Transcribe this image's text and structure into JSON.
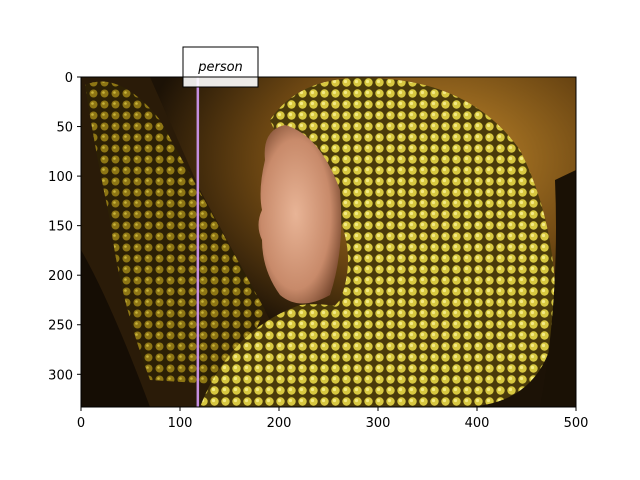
{
  "image": {
    "description_colors": {
      "background_dark": "#1f1608",
      "sequin_bright": "#e2d449",
      "sequin_mid": "#a68f1c",
      "sequin_dark": "#3b2c08",
      "skin": "#d9a384",
      "backdrop_warm": "#b07a24"
    }
  },
  "axes": {
    "x_ticks": [
      "0",
      "100",
      "200",
      "300",
      "400",
      "500"
    ],
    "x_tick_values": [
      0,
      100,
      200,
      300,
      400,
      500
    ],
    "y_ticks": [
      "0",
      "50",
      "100",
      "150",
      "200",
      "250",
      "300"
    ],
    "y_tick_values": [
      0,
      50,
      100,
      150,
      200,
      250,
      300
    ],
    "x_range": [
      0,
      500
    ],
    "y_range": [
      0,
      333
    ]
  },
  "annotation": {
    "label": "person",
    "line_x": 118,
    "line_color": "#c58fe0"
  }
}
